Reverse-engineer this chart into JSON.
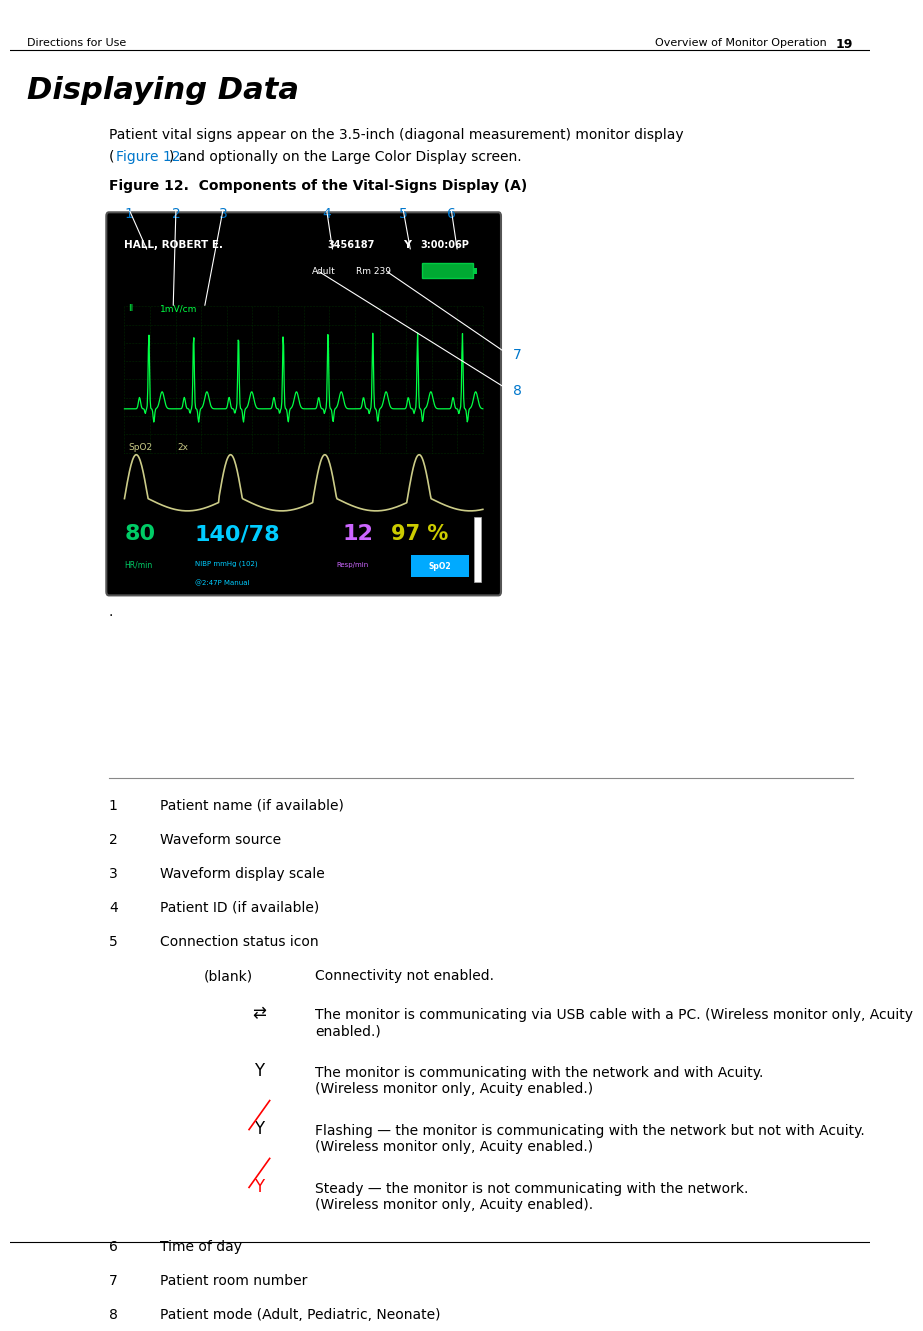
{
  "page_header_left": "Directions for Use",
  "page_header_right": "Overview of Monitor Operation",
  "page_number": "19",
  "section_title": "Displaying Data",
  "body_text_1": "Patient vital signs appear on the 3.5-inch (diagonal measurement) monitor display",
  "body_text_link": "Figure 12",
  "body_text_2": ") and optionally on the Large Color Display screen.",
  "figure_caption": "Figure 12.  Components of the Vital-Signs Display (A)",
  "callout_numbers": [
    "1",
    "2",
    "3",
    "4",
    "5",
    "6"
  ],
  "callout_color": "#0077cc",
  "callout_7": "7",
  "callout_8": "8",
  "monitor_bg": "#000000",
  "patient_name": "HALL, ROBERT E.",
  "patient_id": "3456187",
  "time": "3:00:06P",
  "patient_mode": "Adult",
  "room": "Rm 239",
  "waveform_label": "II",
  "waveform_scale": "1mV/cm",
  "spo2_label": "SpO2",
  "spo2_zoom": "2x",
  "hr_value": "80",
  "hr_label": "HR/min",
  "hr_color": "#00cc66",
  "nibp_value": "140/78",
  "nibp_label": "NIBP mmHg (102)",
  "nibp_label2": "@2:47P Manual",
  "nibp_color": "#00ccff",
  "resp_value": "12",
  "resp_label": "Resp/min",
  "resp_color": "#cc66ff",
  "spo2_value": "97 %",
  "spo2_display_label": "SpO2",
  "spo2_value_color": "#cccc00",
  "spo2_label_bg": "#00aaff",
  "grid_color": "#004400",
  "ecg_color": "#00ff44",
  "spo2_wave_color": "#cccc88",
  "list_items": [
    {
      "num": "1",
      "text": "Patient name (if available)"
    },
    {
      "num": "2",
      "text": "Waveform source"
    },
    {
      "num": "3",
      "text": "Waveform display scale"
    },
    {
      "num": "4",
      "text": "Patient ID (if available)"
    },
    {
      "num": "5",
      "text": "Connection status icon"
    },
    {
      "num": "6",
      "text": "Time of day"
    },
    {
      "num": "7",
      "text": "Patient room number"
    },
    {
      "num": "8",
      "text": "Patient mode (Adult, Pediatric, Neonate)"
    }
  ],
  "usb_text": "The monitor is communicating via USB cable with a PC. (Wireless monitor only, Acuity\nenabled.)",
  "signal1_text": "The monitor is communicating with the network and with Acuity.\n(Wireless monitor only, Acuity enabled.)",
  "signal2_text": "Flashing — the monitor is communicating with the network but not with Acuity.\n(Wireless monitor only, Acuity enabled.)",
  "signal3_text": "Steady — the monitor is not communicating with the network.\n(Wireless monitor only, Acuity enabled).",
  "bg_color": "#ffffff"
}
